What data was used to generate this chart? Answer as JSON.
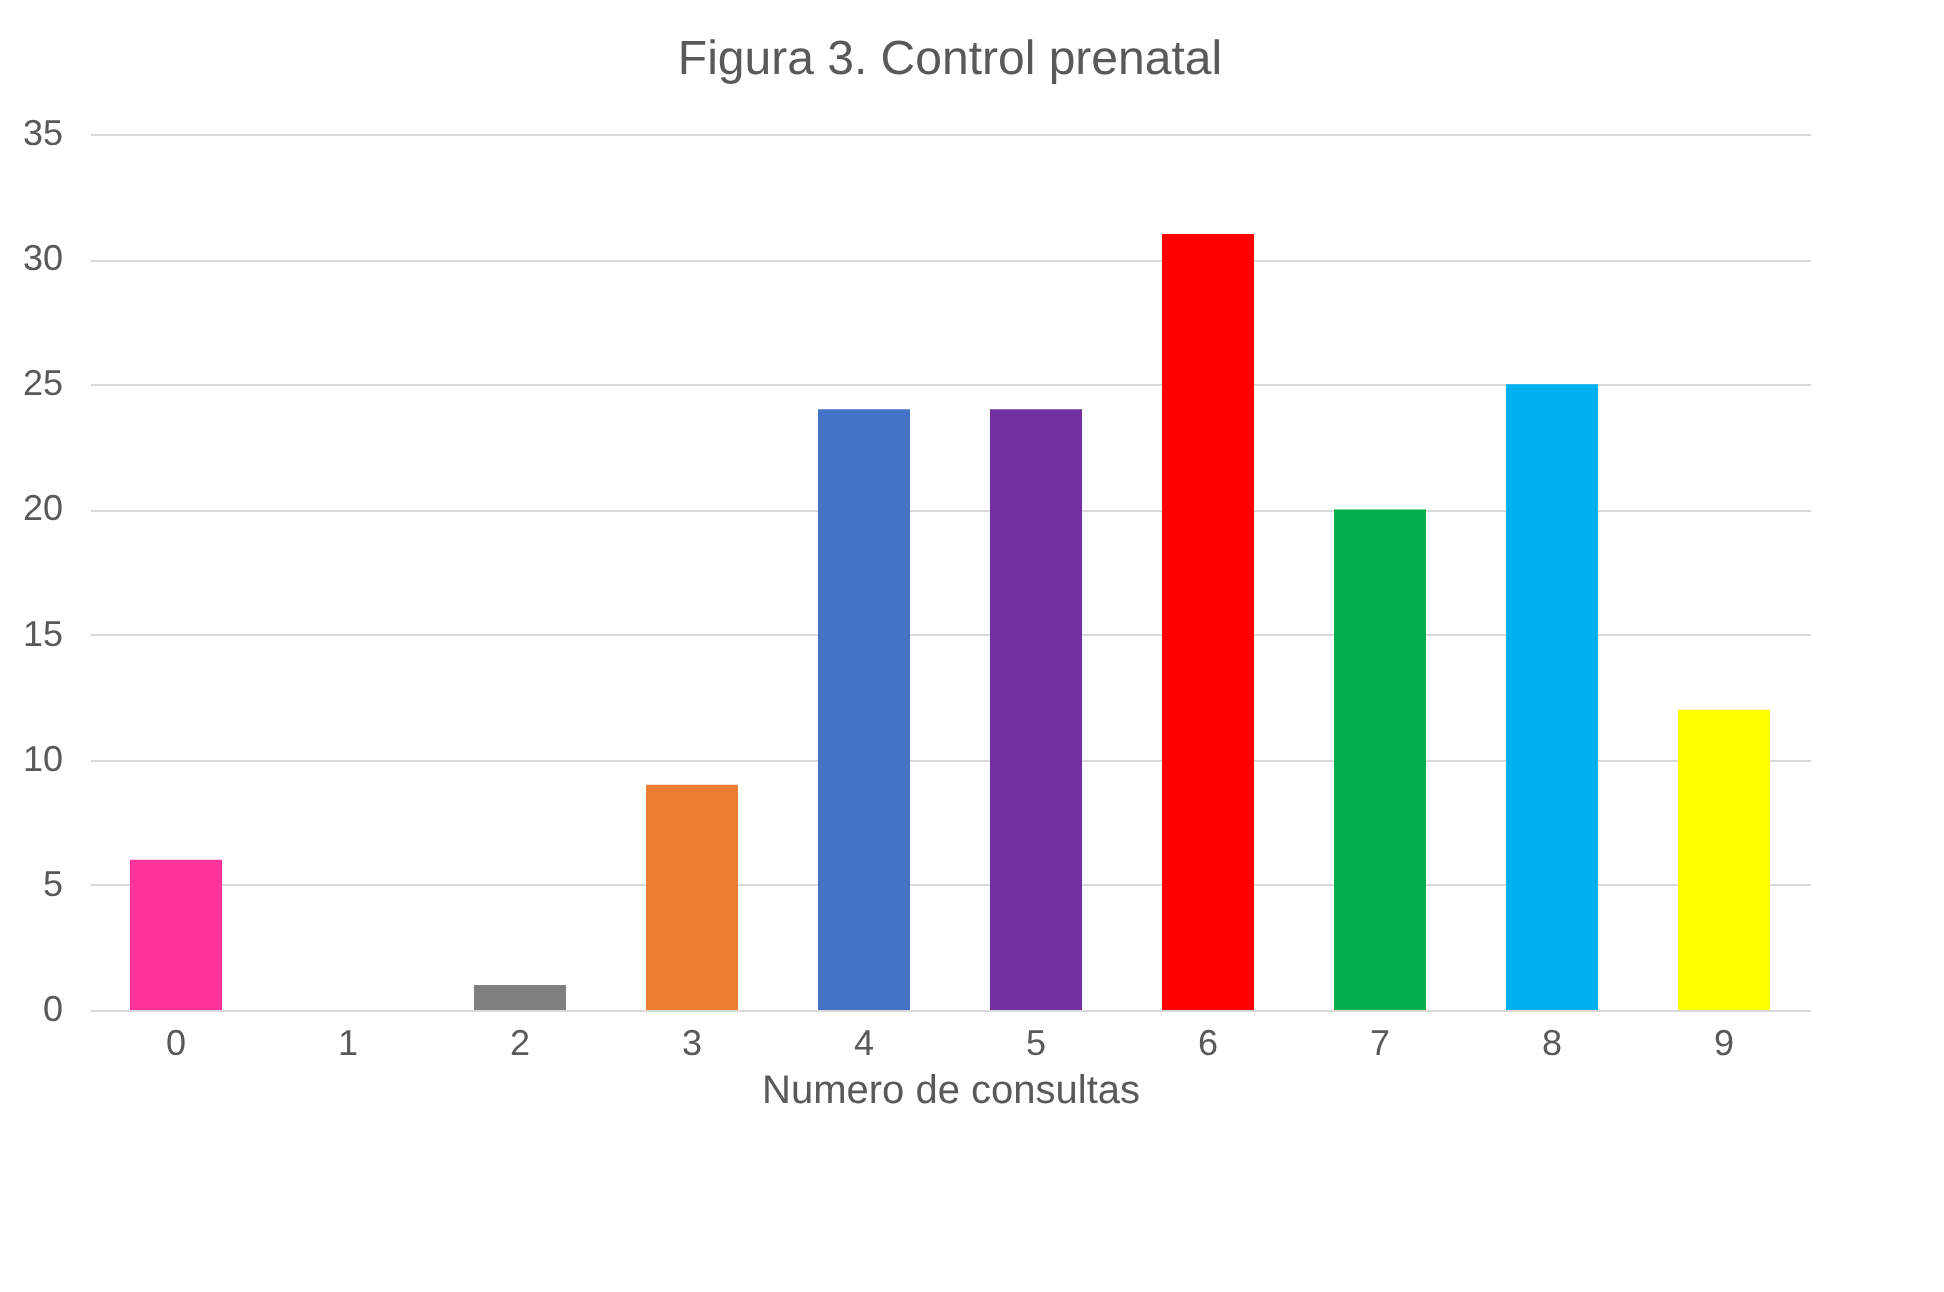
{
  "chart_data": {
    "type": "bar",
    "title": "Figura 3. Control prenatal",
    "xlabel": "Numero de consultas",
    "categories": [
      "0",
      "1",
      "2",
      "3",
      "4",
      "5",
      "6",
      "7",
      "8",
      "9"
    ],
    "values": [
      6,
      0,
      1,
      9,
      24,
      24,
      31,
      20,
      25,
      12
    ],
    "colors": [
      "#ff3399",
      "#a5a5a5",
      "#7f7f7f",
      "#ed7d31",
      "#4472c4",
      "#7030a0",
      "#ff0000",
      "#00b050",
      "#00b0f0",
      "#ffff00"
    ],
    "ylim": [
      0,
      35
    ],
    "yticks": [
      0,
      5,
      10,
      15,
      20,
      25,
      30,
      35
    ],
    "grid": "y"
  }
}
